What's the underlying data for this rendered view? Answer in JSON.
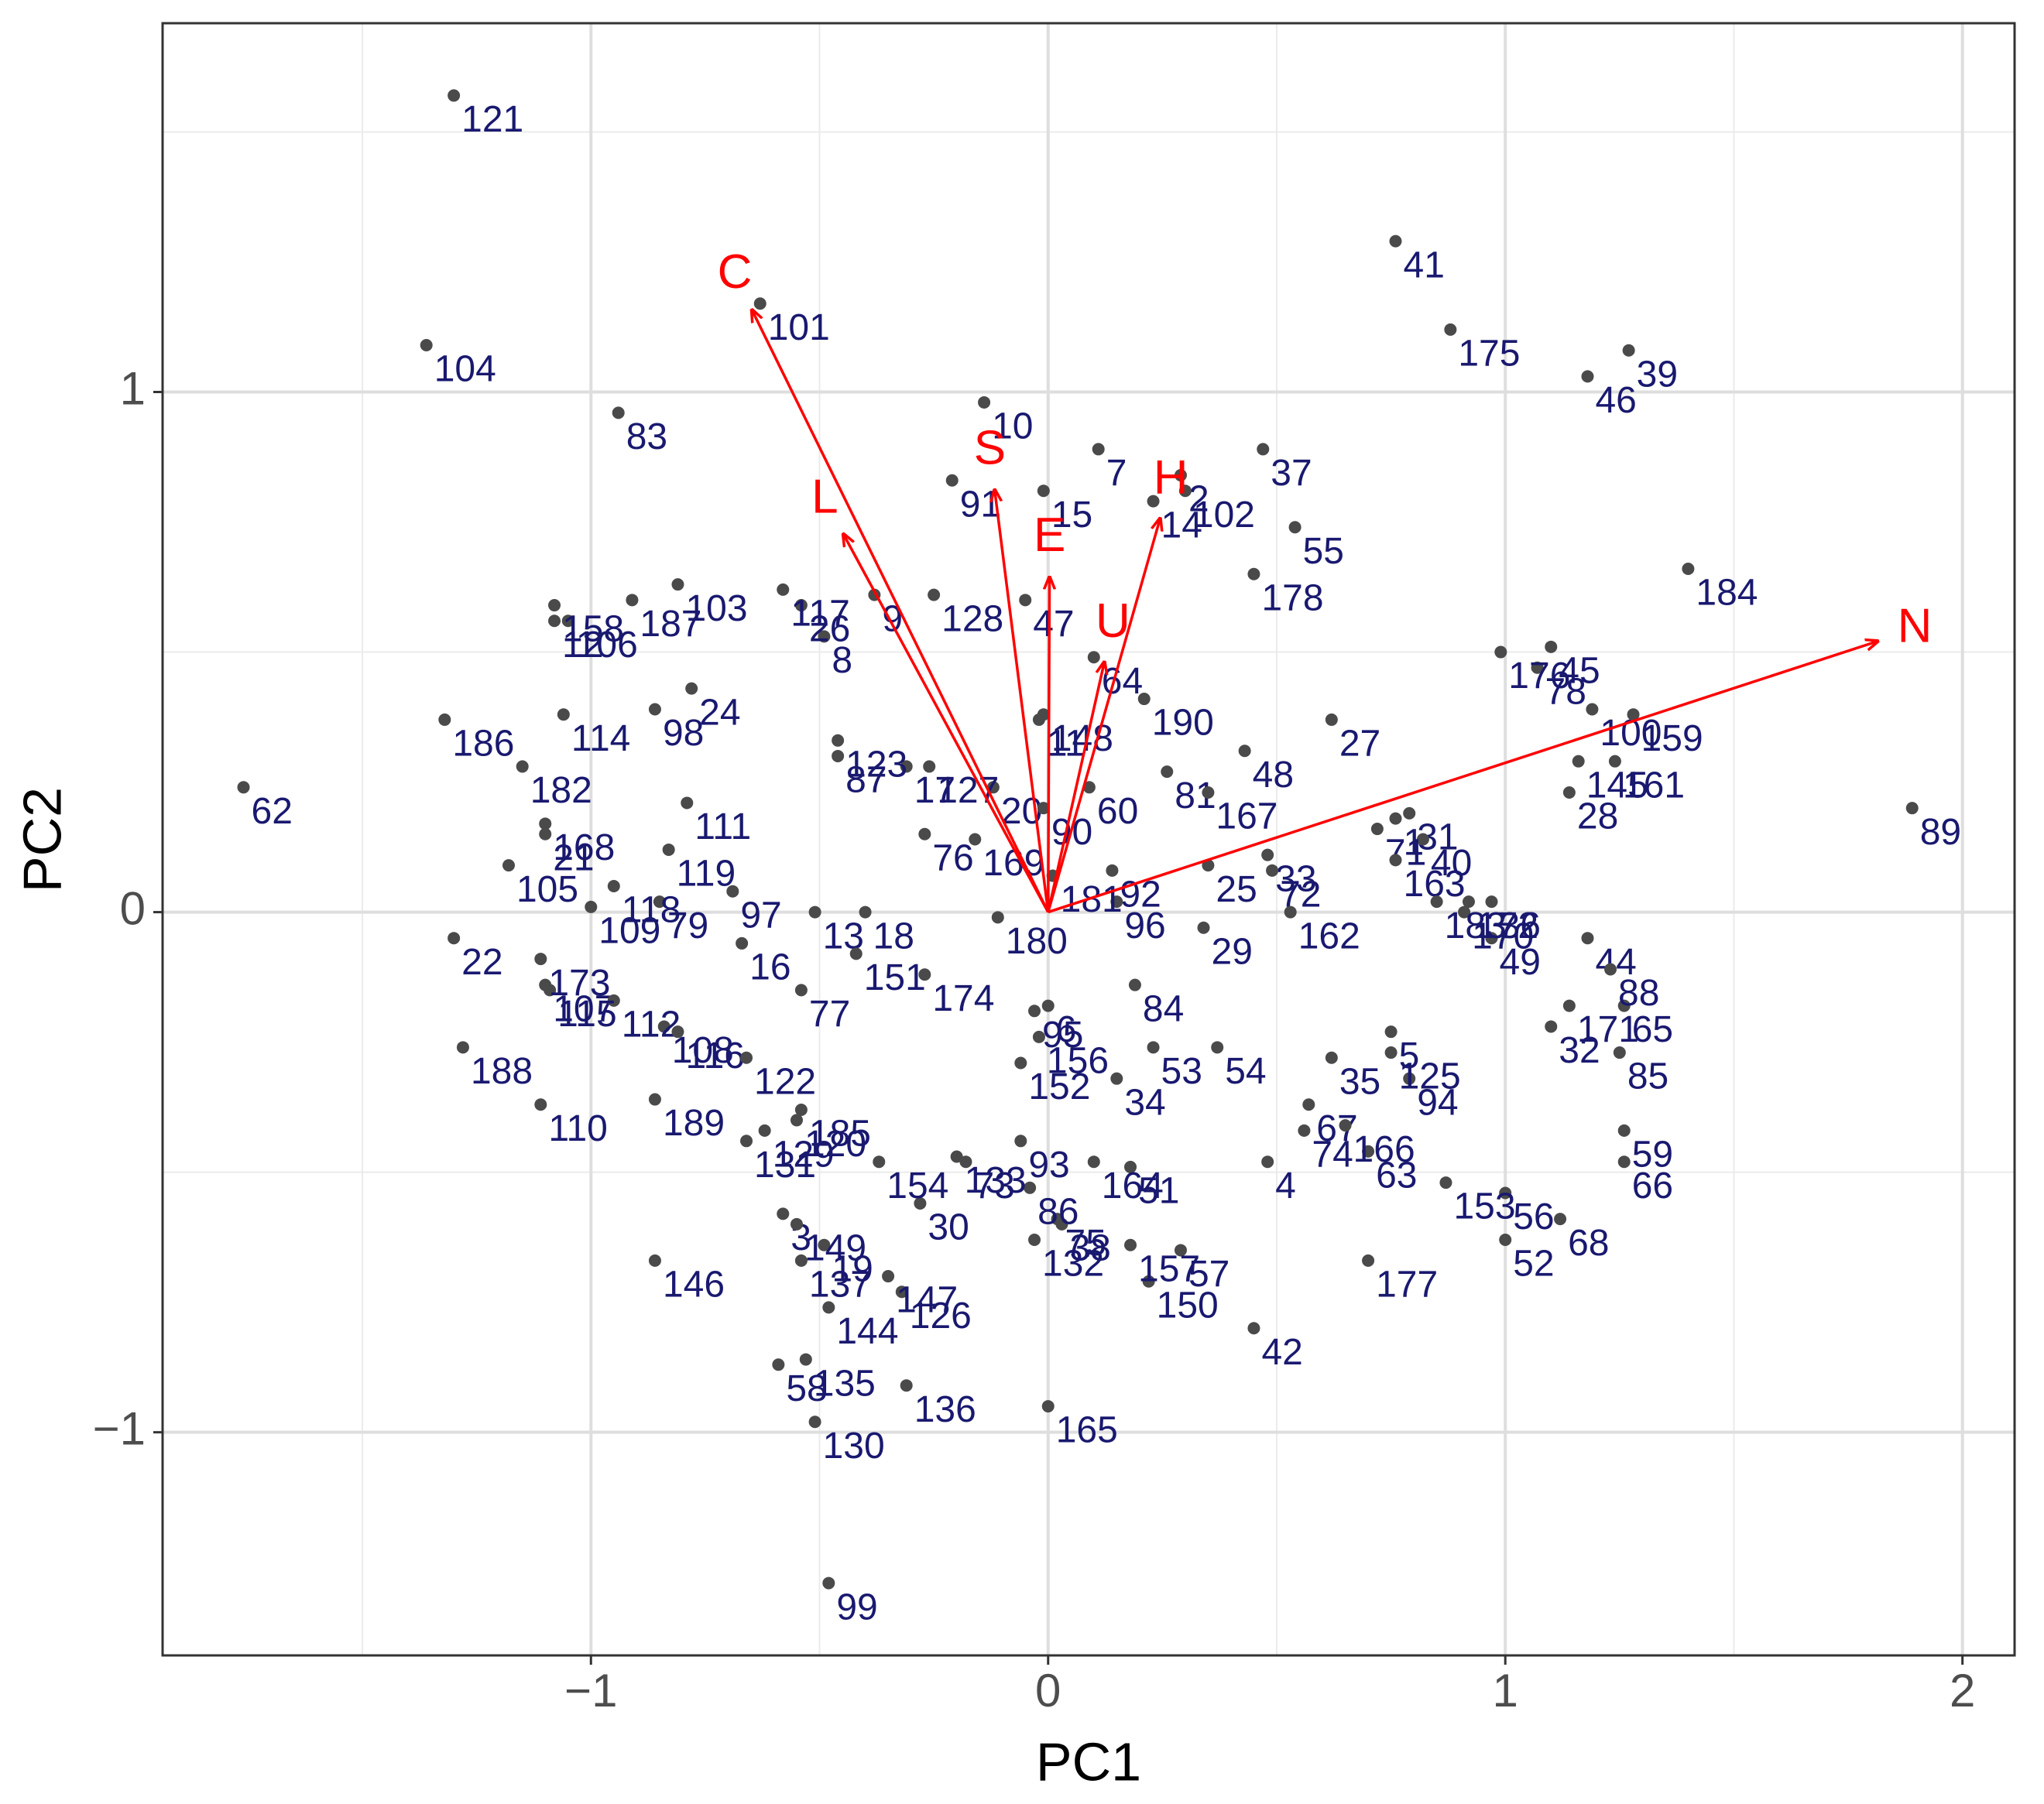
{
  "chart_data": {
    "type": "biplot",
    "x_label": "PC1",
    "y_label": "PC2",
    "xlim": [
      -1.937,
      2.114
    ],
    "ylim": [
      -1.429,
      1.709
    ],
    "xticks": [
      {
        "value": -1,
        "label": "−1"
      },
      0,
      1,
      2
    ],
    "yticks": [
      {
        "value": -1,
        "label": "−1"
      },
      0,
      1
    ],
    "grid": true,
    "point_color": "#4a4a4a",
    "label_color": "#191970",
    "points": {
      "labels": [
        "1",
        "2",
        "3",
        "4",
        "5",
        "6",
        "7",
        "8",
        "9",
        "10",
        "11",
        "12",
        "13",
        "14",
        "15",
        "16",
        "17",
        "18",
        "19",
        "20",
        "21",
        "22",
        "24",
        "25",
        "26",
        "27",
        "28",
        "29",
        "30",
        "31",
        "32",
        "33",
        "34",
        "35",
        "36",
        "37",
        "38",
        "39",
        "40",
        "41",
        "42",
        "44",
        "45",
        "46",
        "47",
        "48",
        "49",
        "51",
        "52",
        "53",
        "54",
        "55",
        "56",
        "57",
        "58",
        "59",
        "60",
        "62",
        "63",
        "64",
        "65",
        "66",
        "67",
        "68",
        "71",
        "72",
        "73",
        "74",
        "75",
        "76",
        "77",
        "78",
        "79",
        "81",
        "83",
        "84",
        "85",
        "86",
        "87",
        "88",
        "89",
        "90",
        "91",
        "92",
        "93",
        "94",
        "95",
        "96",
        "97",
        "98",
        "99",
        "100",
        "101",
        "102",
        "103",
        "104",
        "105",
        "106",
        "107",
        "108",
        "109",
        "110",
        "111",
        "112",
        "114",
        "115",
        "116",
        "117",
        "118",
        "119",
        "120",
        "121",
        "122",
        "123",
        "125",
        "126",
        "127",
        "128",
        "129",
        "130",
        "131",
        "132",
        "133",
        "135",
        "136",
        "137",
        "144",
        "145",
        "146",
        "147",
        "148",
        "149",
        "150",
        "151",
        "152",
        "153",
        "154",
        "156",
        "157",
        "158",
        "159",
        "161",
        "162",
        "163",
        "164",
        "165",
        "166",
        "167",
        "168",
        "169",
        "170",
        "171",
        "172",
        "173",
        "174",
        "175",
        "176",
        "177",
        "178",
        "180",
        "181",
        "182",
        "183",
        "184",
        "185",
        "186",
        "187",
        "188",
        "189",
        "190"
      ],
      "x": [
        0.76,
        0.29,
        -0.58,
        0.48,
        0.75,
        0.0,
        0.11,
        -0.49,
        -0.38,
        -0.14,
        -0.02,
        -1.08,
        -0.51,
        0.23,
        -0.01,
        -0.67,
        -0.31,
        -0.4,
        -0.49,
        -0.12,
        -1.1,
        -1.3,
        -0.78,
        0.35,
        -0.54,
        0.62,
        1.14,
        0.34,
        -0.28,
        0.79,
        1.1,
        0.48,
        0.15,
        0.62,
        0.97,
        0.47,
        0.03,
        1.27,
        0.82,
        0.76,
        0.45,
        1.18,
        1.1,
        1.18,
        -0.05,
        0.43,
        0.97,
        0.18,
        1.0,
        0.23,
        0.37,
        0.54,
        1.0,
        0.29,
        -0.59,
        1.26,
        0.09,
        -1.76,
        0.7,
        0.1,
        1.26,
        1.26,
        0.57,
        1.12,
        0.72,
        0.49,
        -0.18,
        0.56,
        0.02,
        -0.27,
        -0.54,
        1.07,
        -0.85,
        0.26,
        -0.94,
        0.19,
        1.25,
        -0.04,
        -0.46,
        1.23,
        1.89,
        -0.01,
        -0.21,
        0.14,
        -0.06,
        0.79,
        -0.03,
        0.15,
        -0.69,
        -0.86,
        -0.48,
        1.19,
        -0.63,
        0.3,
        -0.81,
        -1.36,
        -1.18,
        -1.05,
        -1.1,
        -0.84,
        -1.0,
        -1.11,
        -0.79,
        -0.95,
        -1.06,
        -1.09,
        -0.81,
        -0.58,
        -0.95,
        -0.83,
        -0.55,
        -1.3,
        -0.66,
        -0.46,
        0.75,
        -0.32,
        -0.26,
        -0.25,
        -0.62,
        -0.51,
        -0.66,
        -0.03,
        -0.2,
        -0.53,
        -0.31,
        -0.54,
        -0.48,
        1.16,
        -0.86,
        -0.35,
        -0.01,
        -0.55,
        0.22,
        -0.42,
        -0.06,
        0.87,
        -0.37,
        -0.02,
        0.18,
        -1.08,
        1.28,
        1.24,
        0.53,
        0.76,
        0.1,
        0.0,
        0.65,
        0.35,
        -1.1,
        -0.16,
        0.91,
        1.14,
        0.92,
        -1.11,
        -0.27,
        0.88,
        0.99,
        0.7,
        0.45,
        -0.11,
        0.01,
        -1.15,
        0.85,
        1.4,
        -0.54,
        -1.32,
        -0.91,
        -1.28,
        -0.86,
        0.21
      ],
      "y": [
        0.18,
        0.84,
        -0.58,
        -0.48,
        -0.23,
        -0.18,
        0.89,
        0.53,
        0.61,
        0.98,
        0.37,
        0.56,
        0.0,
        0.79,
        0.81,
        -0.06,
        0.28,
        0.0,
        -0.64,
        0.24,
        0.15,
        -0.05,
        0.43,
        0.09,
        0.59,
        0.37,
        0.23,
        -0.03,
        -0.56,
        0.19,
        -0.22,
        0.11,
        -0.32,
        -0.28,
        0.02,
        0.89,
        -0.6,
        1.08,
        0.14,
        1.29,
        -0.8,
        -0.05,
        0.51,
        1.03,
        0.6,
        0.31,
        -0.05,
        -0.49,
        -0.63,
        -0.26,
        -0.26,
        0.74,
        -0.54,
        -0.65,
        -0.87,
        -0.42,
        0.24,
        0.24,
        -0.46,
        0.49,
        -0.18,
        -0.48,
        -0.37,
        -0.59,
        0.16,
        0.08,
        -0.48,
        -0.42,
        -0.59,
        0.15,
        -0.15,
        0.47,
        0.02,
        0.27,
        0.96,
        -0.14,
        -0.27,
        -0.53,
        0.3,
        -0.11,
        0.2,
        0.2,
        0.83,
        0.08,
        -0.44,
        -0.32,
        -0.19,
        0.02,
        0.04,
        0.39,
        -1.29,
        0.39,
        1.17,
        0.81,
        0.63,
        1.09,
        0.09,
        0.56,
        -0.14,
        -0.22,
        0.01,
        -0.37,
        0.21,
        -0.17,
        0.38,
        -0.15,
        -0.23,
        0.62,
        0.05,
        0.12,
        -0.4,
        1.57,
        -0.28,
        0.33,
        -0.27,
        -0.73,
        0.28,
        0.61,
        -0.42,
        -0.98,
        -0.44,
        -0.63,
        -0.47,
        -0.86,
        -0.91,
        -0.67,
        -0.76,
        0.29,
        -0.67,
        -0.7,
        0.38,
        -0.6,
        -0.71,
        -0.08,
        -0.29,
        -0.52,
        -0.48,
        -0.24,
        -0.64,
        0.59,
        0.38,
        0.29,
        0.0,
        0.1,
        -0.48,
        -0.95,
        -0.41,
        0.23,
        0.17,
        0.14,
        0.0,
        -0.18,
        0.02,
        -0.09,
        -0.12,
        1.12,
        0.5,
        -0.67,
        0.65,
        -0.01,
        0.07,
        0.28,
        0.02,
        0.66,
        -0.38,
        0.37,
        0.6,
        -0.26,
        -0.36,
        0.41
      ]
    },
    "loadings": {
      "color": "#ff0000",
      "names": [
        "C",
        "L",
        "S",
        "E",
        "U",
        "H",
        "N"
      ],
      "x": [
        -0.648,
        -0.448,
        -0.117,
        0.003,
        0.123,
        0.245,
        1.815
      ],
      "y": [
        1.158,
        0.727,
        0.812,
        0.644,
        0.481,
        0.757,
        0.521
      ]
    }
  }
}
